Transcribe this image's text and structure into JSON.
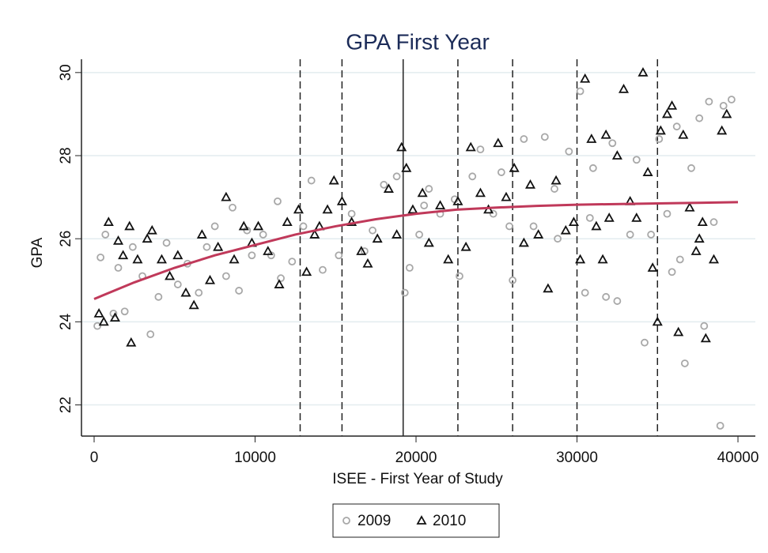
{
  "chart_data": {
    "type": "scatter",
    "title": "GPA First Year",
    "x_label": "ISEE - First Year of Study",
    "y_label": "GPA",
    "xlim": [
      -786,
      41080
    ],
    "ylim": [
      21.25,
      30.32
    ],
    "xticks": [
      0,
      10000,
      20000,
      30000,
      40000
    ],
    "yticks": [
      22,
      24,
      26,
      28,
      30
    ],
    "grid": true,
    "vlines": [
      {
        "value": 12800,
        "style": "dashed"
      },
      {
        "value": 15400,
        "style": "dashed"
      },
      {
        "value": 19200,
        "style": "solid"
      },
      {
        "value": 22600,
        "style": "dashed"
      },
      {
        "value": 26000,
        "style": "dashed"
      },
      {
        "value": 30000,
        "style": "dashed"
      },
      {
        "value": 35000,
        "style": "dashed"
      }
    ],
    "fit": {
      "color": "#c0395a",
      "x": [
        0,
        2500,
        5000,
        7500,
        10000,
        12500,
        15000,
        17500,
        20000,
        22500,
        25000,
        27500,
        30000,
        35000,
        40000
      ],
      "values": [
        24.55,
        24.95,
        25.3,
        25.6,
        25.85,
        26.1,
        26.3,
        26.47,
        26.6,
        26.7,
        26.75,
        26.79,
        26.82,
        26.85,
        26.88
      ]
    },
    "legend": "bottom",
    "series": [
      {
        "name": "2009",
        "marker": "circle",
        "color": "#a8a8a8",
        "x": [
          200,
          400,
          700,
          1200,
          1500,
          1900,
          2400,
          3000,
          3500,
          4000,
          4500,
          5200,
          5800,
          6500,
          7000,
          7500,
          8200,
          8600,
          9000,
          9800,
          10500,
          11000,
          11400,
          11600,
          12300,
          13000,
          14200,
          15200,
          16000,
          16800,
          17300,
          18000,
          18800,
          19300,
          19600,
          20200,
          20800,
          21500,
          22400,
          22700,
          23500,
          24000,
          24800,
          25300,
          26000,
          26700,
          27300,
          28000,
          28600,
          29500,
          30200,
          30500,
          31000,
          31800,
          32200,
          32500,
          33300,
          33700,
          34200,
          34600,
          35100,
          35600,
          35900,
          36200,
          36400,
          36700,
          37100,
          37600,
          37900,
          38200,
          38500,
          38900,
          39100,
          39600,
          9500,
          13500,
          20500,
          25800,
          28800,
          30800
        ],
        "values": [
          23.9,
          25.55,
          26.1,
          24.2,
          25.3,
          24.25,
          25.8,
          25.1,
          23.7,
          24.6,
          25.9,
          24.9,
          25.4,
          24.7,
          25.8,
          26.3,
          25.1,
          26.75,
          24.75,
          25.6,
          26.1,
          25.6,
          26.9,
          25.05,
          25.45,
          26.3,
          25.25,
          25.6,
          26.6,
          25.7,
          26.2,
          27.3,
          27.5,
          24.7,
          25.3,
          26.1,
          27.2,
          26.6,
          26.95,
          25.1,
          27.5,
          28.15,
          26.6,
          27.6,
          25.0,
          28.4,
          26.3,
          28.45,
          27.2,
          28.1,
          29.55,
          24.7,
          27.7,
          24.6,
          28.3,
          24.5,
          26.1,
          27.9,
          23.5,
          26.1,
          28.4,
          26.6,
          25.2,
          28.7,
          25.5,
          23.0,
          27.7,
          28.9,
          23.9,
          29.3,
          26.4,
          21.5,
          29.2,
          29.35,
          26.2,
          27.4,
          26.8,
          26.3,
          26.0,
          26.5
        ]
      },
      {
        "name": "2010",
        "marker": "triangle",
        "color": "#111111",
        "x": [
          300,
          600,
          900,
          1300,
          1500,
          1800,
          2200,
          2300,
          2700,
          3300,
          3600,
          4200,
          4700,
          5200,
          5700,
          6200,
          6700,
          7200,
          7700,
          8200,
          8700,
          9300,
          9800,
          10200,
          10800,
          11500,
          12000,
          12700,
          13200,
          13700,
          14000,
          14500,
          14900,
          15400,
          16000,
          16600,
          17000,
          17600,
          18300,
          18800,
          19100,
          19400,
          19800,
          20400,
          20800,
          21500,
          22000,
          22600,
          23100,
          23400,
          24000,
          24500,
          25100,
          25600,
          26100,
          26700,
          27100,
          27600,
          28200,
          28700,
          29300,
          29800,
          30200,
          30500,
          30900,
          31200,
          31600,
          32000,
          32500,
          32900,
          33300,
          33700,
          34100,
          34400,
          34700,
          35000,
          35200,
          35600,
          35900,
          36300,
          36600,
          37000,
          37400,
          37600,
          37800,
          38000,
          38500,
          39000,
          39300,
          31800
        ],
        "values": [
          24.2,
          24.0,
          26.4,
          24.1,
          25.95,
          25.6,
          26.3,
          23.5,
          25.5,
          26.0,
          26.2,
          25.5,
          25.1,
          25.6,
          24.7,
          24.4,
          26.1,
          25.0,
          25.8,
          27.0,
          25.5,
          26.3,
          25.9,
          26.3,
          25.7,
          24.9,
          26.4,
          26.7,
          25.2,
          26.1,
          26.3,
          26.7,
          27.4,
          26.9,
          26.4,
          25.7,
          25.4,
          26.0,
          27.2,
          26.1,
          28.2,
          27.7,
          26.7,
          27.1,
          25.9,
          26.8,
          25.5,
          26.9,
          25.8,
          28.2,
          27.1,
          26.7,
          28.3,
          27.0,
          27.7,
          25.9,
          27.3,
          26.1,
          24.8,
          27.4,
          26.2,
          26.4,
          25.5,
          29.85,
          28.4,
          26.3,
          25.5,
          26.5,
          28.0,
          29.6,
          26.9,
          26.5,
          30.0,
          27.6,
          25.3,
          24.0,
          28.6,
          29.0,
          29.2,
          23.75,
          28.5,
          26.75,
          25.7,
          26.0,
          26.4,
          23.6,
          25.5,
          28.6,
          29.0,
          28.5
        ]
      }
    ]
  }
}
